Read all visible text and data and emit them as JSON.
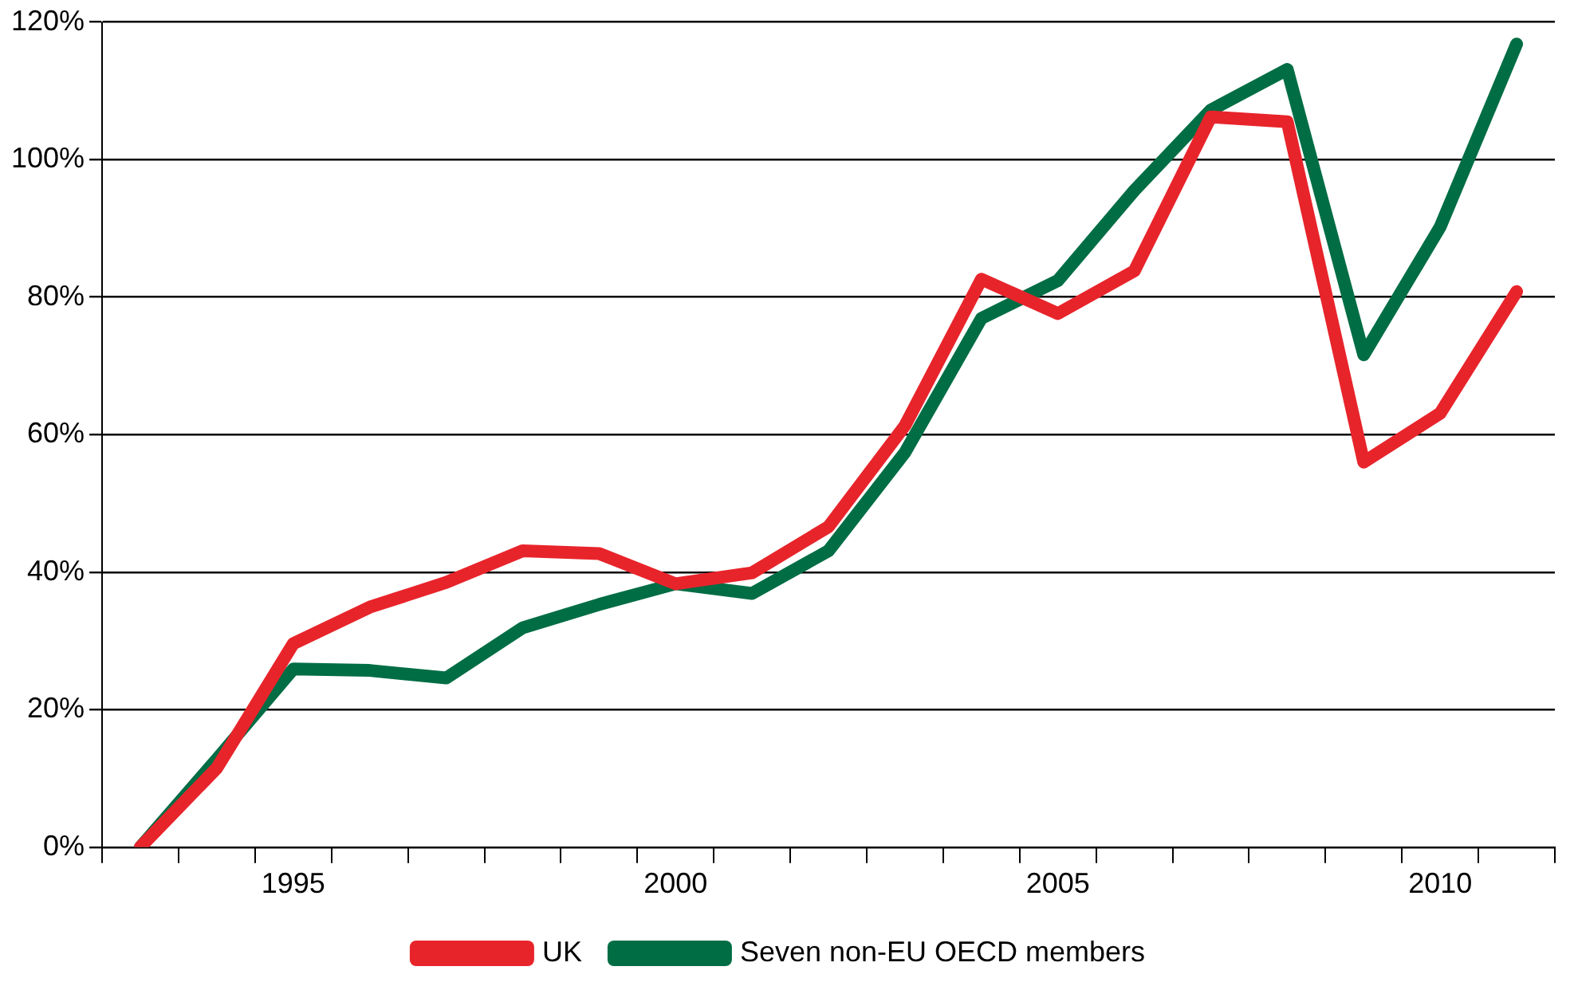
{
  "chart_data": {
    "type": "line",
    "categories": [
      null,
      null,
      "1995",
      null,
      null,
      null,
      null,
      "2000",
      null,
      null,
      null,
      null,
      "2005",
      null,
      null,
      null,
      null,
      "2010",
      null
    ],
    "series": [
      {
        "name": "UK",
        "color": "#e8242b",
        "values": [
          0,
          11.5,
          29.6,
          34.9,
          38.5,
          43.1,
          42.7,
          38.3,
          39.9,
          46.6,
          61.3,
          82.6,
          77.6,
          83.8,
          106.2,
          105.5,
          56,
          63.1,
          80.8
        ]
      },
      {
        "name": "Seven non-EU OECD members",
        "color": "#006d45",
        "values": [
          0,
          12.8,
          25.9,
          25.7,
          24.6,
          31.9,
          35.3,
          38.3,
          36.9,
          43.1,
          57.4,
          76.9,
          82.4,
          95.5,
          107.2,
          113.1,
          71.6,
          90.2,
          116.8
        ]
      }
    ],
    "ylim": [
      0,
      120
    ],
    "yticks": [
      {
        "value": 0,
        "label": "0%"
      },
      {
        "value": 20,
        "label": "20%"
      },
      {
        "value": 40,
        "label": "40%"
      },
      {
        "value": 60,
        "label": "60%"
      },
      {
        "value": 80,
        "label": "80%"
      },
      {
        "value": 100,
        "label": "100%"
      },
      {
        "value": 120,
        "label": "120%"
      }
    ],
    "grid": "y",
    "legend": "bottom",
    "marker": "none",
    "line_style": "solid"
  }
}
